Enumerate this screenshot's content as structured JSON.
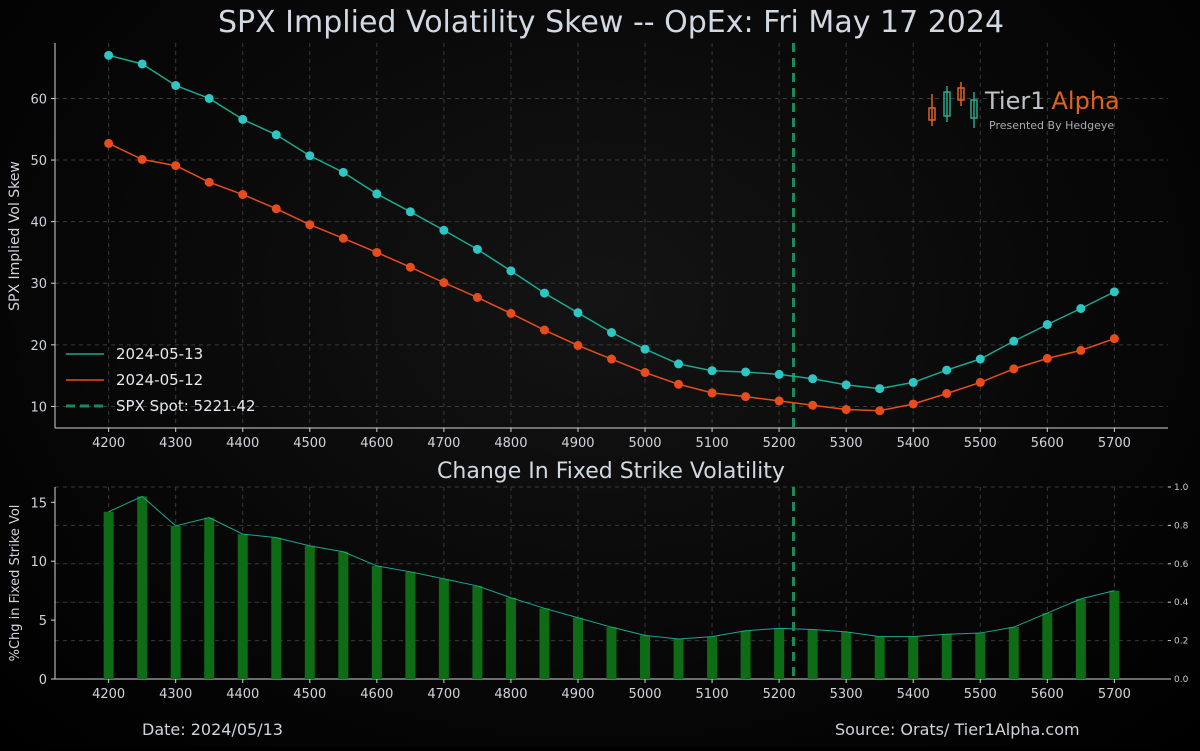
{
  "title": "SPX Implied Volatility Skew -- OpEx: Fri May 17 2024",
  "brand": {
    "name_part1": "Tier1",
    "name_part2": "Alpha",
    "tagline": "Presented By Hedgeye"
  },
  "footer": {
    "date": "Date: 2024/05/13",
    "source": "Source: Orats/ Tier1Alpha.com"
  },
  "colors": {
    "series_1": "#1aa88e",
    "series_1_marker": "#2ec6c4",
    "series_2": "#e84c1c",
    "spot_line": "#1a8a5a",
    "bar": "#0e6b16",
    "bar_line": "#1aa88e"
  },
  "chart_data": [
    {
      "type": "line",
      "ylabel": "SPX Implied Vol Skew",
      "ylim": [
        6.5,
        69
      ],
      "yticks": [
        10,
        20,
        30,
        40,
        50,
        60
      ],
      "xlim": [
        4120,
        5780
      ],
      "xticks": [
        4200,
        4300,
        4400,
        4500,
        4600,
        4700,
        4800,
        4900,
        5000,
        5100,
        5200,
        5300,
        5400,
        5500,
        5600,
        5700
      ],
      "x": [
        4200,
        4250,
        4300,
        4350,
        4400,
        4450,
        4500,
        4550,
        4600,
        4650,
        4700,
        4750,
        4800,
        4850,
        4900,
        4950,
        5000,
        5050,
        5100,
        5150,
        5200,
        5250,
        5300,
        5350,
        5400,
        5450,
        5500,
        5550,
        5600,
        5650,
        5700
      ],
      "series": [
        {
          "name": "2024-05-13",
          "values": [
            67.0,
            65.6,
            62.1,
            60.0,
            56.6,
            54.1,
            50.7,
            48.0,
            44.5,
            41.6,
            38.6,
            35.5,
            32.0,
            28.4,
            25.2,
            22.0,
            19.3,
            16.9,
            15.8,
            15.6,
            15.2,
            14.5,
            13.5,
            12.9,
            13.9,
            15.9,
            17.7,
            20.6,
            23.3,
            25.9,
            28.6
          ]
        },
        {
          "name": "2024-05-12",
          "values": [
            52.7,
            50.1,
            49.1,
            46.4,
            44.4,
            42.1,
            39.5,
            37.3,
            35.0,
            32.6,
            30.1,
            27.7,
            25.1,
            22.4,
            19.9,
            17.7,
            15.5,
            13.6,
            12.2,
            11.6,
            10.9,
            10.2,
            9.5,
            9.3,
            10.4,
            12.1,
            13.9,
            16.1,
            17.8,
            19.1,
            21.0
          ]
        }
      ],
      "spot": {
        "label": "SPX Spot: 5221.42",
        "value": 5221.42
      },
      "legend": "lower-left",
      "grid": true
    },
    {
      "type": "bar",
      "title": "Change In Fixed Strike Volatility",
      "ylabel": "%Chg in Fixed Strike Vol",
      "ylim": [
        0,
        16.3
      ],
      "yticks": [
        0,
        5,
        10,
        15
      ],
      "secondary_yticks": [
        "0.0",
        "0.2",
        "0.4",
        "0.6",
        "0.8",
        "1.0"
      ],
      "xlim": [
        4120,
        5780
      ],
      "xticks": [
        4200,
        4300,
        4400,
        4500,
        4600,
        4700,
        4800,
        4900,
        5000,
        5100,
        5200,
        5300,
        5400,
        5500,
        5600,
        5700
      ],
      "x": [
        4200,
        4250,
        4300,
        4350,
        4400,
        4450,
        4500,
        4550,
        4600,
        4650,
        4700,
        4750,
        4800,
        4850,
        4900,
        4950,
        5000,
        5050,
        5100,
        5150,
        5200,
        5250,
        5300,
        5350,
        5400,
        5450,
        5500,
        5550,
        5600,
        5650,
        5700
      ],
      "values": [
        14.2,
        15.5,
        13.0,
        13.7,
        12.3,
        12.0,
        11.3,
        10.8,
        9.6,
        9.1,
        8.5,
        7.9,
        6.9,
        6.0,
        5.2,
        4.4,
        3.7,
        3.4,
        3.6,
        4.1,
        4.3,
        4.2,
        4.0,
        3.6,
        3.6,
        3.8,
        3.9,
        4.4,
        5.6,
        6.8,
        7.5
      ],
      "spot": 5221.42,
      "grid": true
    }
  ]
}
